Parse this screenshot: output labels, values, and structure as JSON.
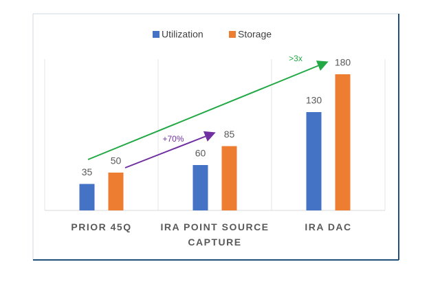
{
  "chart_data": {
    "type": "bar",
    "categories": [
      "PRIOR 45Q",
      "IRA POINT SOURCE CAPTURE",
      "IRA DAC"
    ],
    "series": [
      {
        "name": "Utilization",
        "color": "#4472c4",
        "values": [
          35,
          60,
          130
        ]
      },
      {
        "name": "Storage",
        "color": "#ed7d31",
        "values": [
          50,
          85,
          180
        ]
      }
    ],
    "ylim": [
      0,
      200
    ],
    "annotations": [
      {
        "text": ">3x",
        "color": "#22a845"
      },
      {
        "text": "+70%",
        "color": "#7030a0"
      }
    ]
  }
}
